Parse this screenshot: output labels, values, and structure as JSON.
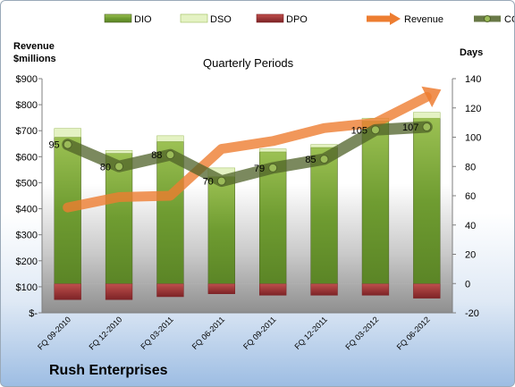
{
  "chart_data": {
    "type": "bar",
    "title": "Quarterly Periods",
    "company": "Rush Enterprises",
    "left_axis_title_line1": "Revenue",
    "left_axis_title_line2": "$millions",
    "right_axis_title": "Days",
    "legend_position": "top",
    "categories": [
      "FQ 09-2010",
      "FQ 12-2010",
      "FQ 03-2011",
      "FQ 06-2011",
      "FQ 09-2011",
      "FQ 12-2011",
      "FQ 03-2012",
      "FQ 06-2012"
    ],
    "left_axis": {
      "ticks": [
        "$900",
        "$800",
        "$700",
        "$600",
        "$500",
        "$400",
        "$300",
        "$200",
        "$100",
        "$-"
      ],
      "range": [
        0,
        900
      ]
    },
    "right_axis": {
      "ticks": [
        "140",
        "120",
        "100",
        "80",
        "60",
        "40",
        "20",
        "0",
        "-20"
      ],
      "range": [
        -20,
        140
      ]
    },
    "series": [
      {
        "name": "DIO",
        "axis": "days",
        "kind": "bar",
        "color": "#77a33a",
        "values": [
          100,
          89,
          97,
          73,
          90,
          93,
          111,
          113
        ]
      },
      {
        "name": "DSO",
        "axis": "days",
        "kind": "bar-stack",
        "color": "#e4f2c3",
        "values": [
          6,
          2,
          4,
          6,
          2,
          2,
          2,
          4
        ]
      },
      {
        "name": "DPO",
        "axis": "days",
        "kind": "bar-negative",
        "color": "#a9373b",
        "values": [
          -11,
          -11,
          -9,
          -7,
          -8,
          -8,
          -8,
          -10
        ]
      },
      {
        "name": "Revenue",
        "axis": "revenue",
        "kind": "line",
        "color": "#ed7d31",
        "values": [
          405,
          445,
          450,
          630,
          660,
          710,
          730,
          830
        ]
      },
      {
        "name": "CCC",
        "axis": "days",
        "kind": "line",
        "color": "#4f6228",
        "values": [
          95,
          80,
          88,
          70,
          79,
          85,
          105,
          107
        ]
      }
    ]
  }
}
